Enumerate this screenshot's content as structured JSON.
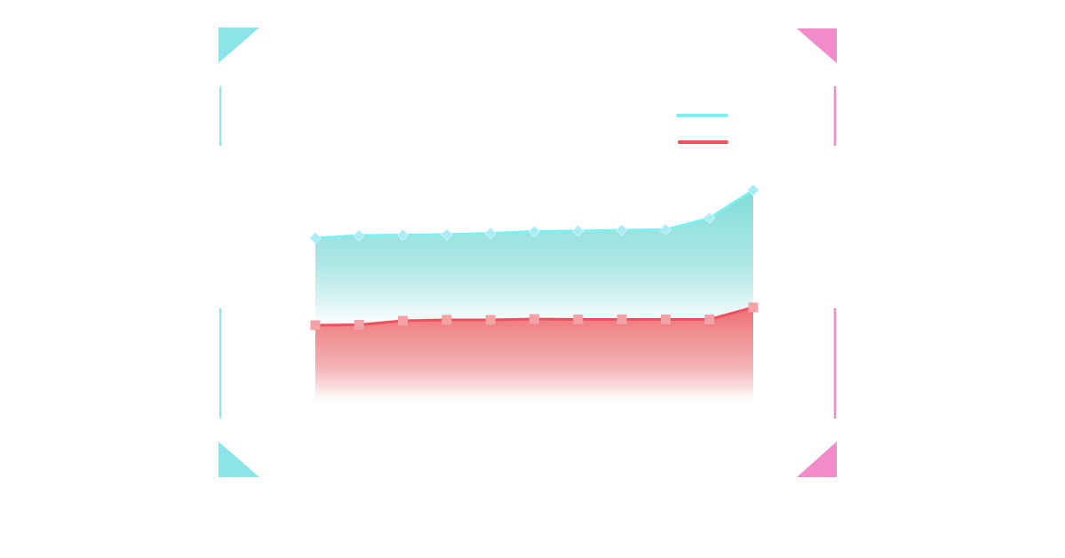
{
  "colors": {
    "series_cyan": "#7df0ef",
    "series_red": "#ef4f5f",
    "fill_cyan": "#7fdcd8",
    "fill_red": "#ee6e72",
    "marker_cyan": "#a8ecf5",
    "marker_red": "#f4a2a6",
    "frame_cyan": "#8ce4e8",
    "frame_pink": "#f28bca"
  },
  "chart_data": {
    "type": "area",
    "title": "",
    "xlabel": "",
    "ylabel": "",
    "legend_position": "top-right",
    "grid": false,
    "stacked": true,
    "axis_labels_shown": false,
    "x": [
      1,
      2,
      3,
      4,
      5,
      6,
      7,
      8,
      9,
      10,
      11
    ],
    "ylim": [
      0,
      240
    ],
    "series": [
      {
        "name": "",
        "color": "#ef4f5f",
        "marker": "square",
        "values": [
          84,
          84.5,
          89,
          90,
          90,
          91,
          90.5,
          90.5,
          90.5,
          90.5,
          104
        ]
      },
      {
        "name": "",
        "color": "#7df0ef",
        "marker": "diamond",
        "values": [
          98,
          100.5,
          96.5,
          96,
          97.5,
          98.5,
          99.5,
          100.5,
          101,
          114,
          132
        ]
      }
    ]
  }
}
